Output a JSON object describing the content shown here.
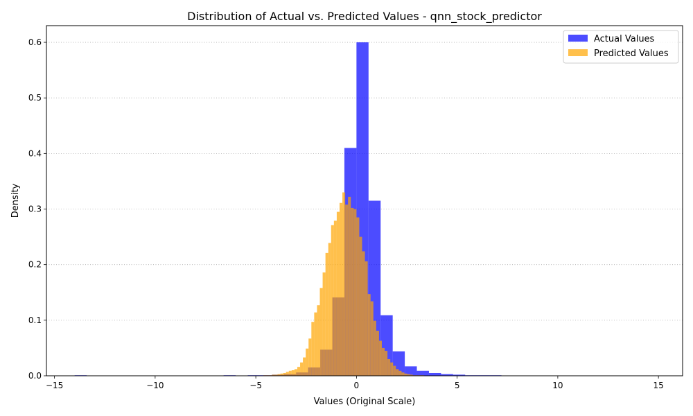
{
  "chart_data": {
    "type": "histogram",
    "title": "Distribution of Actual vs. Predicted Values - qnn_stock_predictor",
    "xlabel": "Values (Original Scale)",
    "ylabel": "Density",
    "xlim": [
      -15.4,
      16.2
    ],
    "ylim": [
      0,
      0.63
    ],
    "xticks": [
      -15,
      -10,
      -5,
      0,
      5,
      10,
      15
    ],
    "xtick_labels": [
      "−15",
      "−10",
      "−5",
      "0",
      "5",
      "10",
      "15"
    ],
    "yticks": [
      0.0,
      0.1,
      0.2,
      0.3,
      0.4,
      0.5,
      0.6
    ],
    "ytick_labels": [
      "0.0",
      "0.1",
      "0.2",
      "0.3",
      "0.4",
      "0.5",
      "0.6"
    ],
    "grid": "y-dotted",
    "legend_position": "top-right",
    "series": [
      {
        "name": "Actual Values",
        "color": "#0000ff",
        "opacity": 0.7,
        "bin_width": 0.6,
        "bin_starts": [
          -14.0,
          -6.6,
          -5.4,
          -4.8,
          -4.2,
          -3.6,
          -3.0,
          -2.4,
          -1.8,
          -1.2,
          -0.6,
          0.0,
          0.6,
          1.2,
          1.8,
          2.4,
          3.0,
          3.6,
          4.2,
          4.8,
          5.4,
          6.0,
          6.6
        ],
        "values": [
          0.001,
          0.001,
          0.001,
          0.001,
          0.002,
          0.003,
          0.006,
          0.015,
          0.047,
          0.141,
          0.41,
          0.6,
          0.315,
          0.109,
          0.044,
          0.017,
          0.009,
          0.005,
          0.003,
          0.002,
          0.001,
          0.001,
          0.001
        ]
      },
      {
        "name": "Predicted Values",
        "color": "#ffa500",
        "opacity": 0.7,
        "bin_width": 0.14,
        "bin_starts": [
          -4.62,
          -4.48,
          -4.34,
          -4.2,
          -4.06,
          -3.92,
          -3.78,
          -3.64,
          -3.5,
          -3.36,
          -3.22,
          -3.08,
          -2.94,
          -2.8,
          -2.66,
          -2.52,
          -2.38,
          -2.24,
          -2.1,
          -1.96,
          -1.82,
          -1.68,
          -1.54,
          -1.4,
          -1.26,
          -1.12,
          -0.98,
          -0.84,
          -0.7,
          -0.56,
          -0.42,
          -0.28,
          -0.14,
          0.0,
          0.14,
          0.28,
          0.42,
          0.56,
          0.7,
          0.84,
          0.98,
          1.12,
          1.26,
          1.4,
          1.54,
          1.68,
          1.82,
          1.96,
          2.1,
          2.24,
          2.38,
          2.52,
          2.66,
          2.8,
          2.94,
          3.08,
          3.22
        ],
        "values": [
          0.001,
          0.001,
          0.001,
          0.002,
          0.002,
          0.003,
          0.004,
          0.005,
          0.007,
          0.009,
          0.01,
          0.012,
          0.016,
          0.024,
          0.033,
          0.049,
          0.067,
          0.097,
          0.114,
          0.127,
          0.158,
          0.186,
          0.221,
          0.239,
          0.271,
          0.279,
          0.295,
          0.311,
          0.33,
          0.308,
          0.322,
          0.302,
          0.3,
          0.285,
          0.25,
          0.224,
          0.206,
          0.147,
          0.134,
          0.099,
          0.081,
          0.063,
          0.05,
          0.045,
          0.03,
          0.024,
          0.018,
          0.012,
          0.009,
          0.006,
          0.004,
          0.003,
          0.002,
          0.001,
          0.001,
          0.001,
          0.001
        ]
      }
    ]
  }
}
